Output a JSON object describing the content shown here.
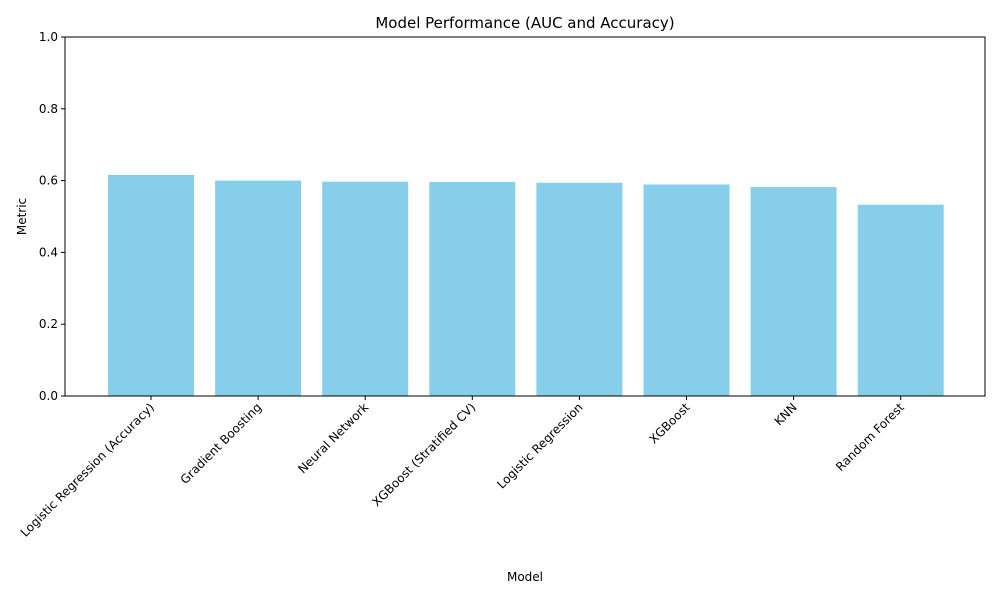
{
  "chart_data": {
    "type": "bar",
    "title": "Model Performance (AUC and Accuracy)",
    "xlabel": "Model",
    "ylabel": "Metric",
    "categories": [
      "Logistic Regression (Accuracy)",
      "Gradient Boosting",
      "Neural Network",
      "XGBoost (Stratified CV)",
      "Logistic Regression",
      "XGBoost",
      "KNN",
      "Random Forest"
    ],
    "values": [
      0.616,
      0.6,
      0.597,
      0.596,
      0.594,
      0.589,
      0.582,
      0.533
    ],
    "ylim": [
      0,
      1
    ],
    "yticks": [
      "0.0",
      "0.2",
      "0.4",
      "0.6",
      "0.8",
      "1.0"
    ],
    "bar_color": "#87ceeb",
    "grid": false,
    "legend": "none"
  }
}
